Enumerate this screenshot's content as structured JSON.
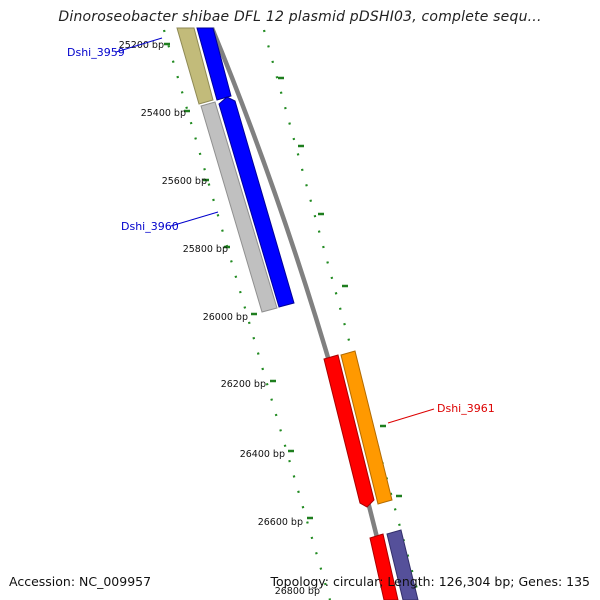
{
  "title": "Dinoroseobacter shibae DFL 12 plasmid pDSHI03, complete sequ...",
  "accession": "Accession: NC_009957",
  "summary": "Topology: circular; Length: 126,304 bp; Genes: 135",
  "ticks": [
    "25200 bp",
    "25400 bp",
    "25600 bp",
    "25800 bp",
    "26000 bp",
    "26200 bp",
    "26400 bp",
    "26600 bp",
    "26800 bp"
  ],
  "genes": [
    {
      "name": "Dshi_3959",
      "label_color": "#0000cc"
    },
    {
      "name": "Dshi_3960",
      "label_color": "#0000cc"
    },
    {
      "name": "Dshi_3961",
      "label_color": "#dd0000"
    }
  ],
  "colors": {
    "backbone": "#808080",
    "tick_marks": "#228b22",
    "gene_blue": "#0000ff",
    "gene_grey": "#c0c0c0",
    "gene_olive": "#c2bb7a",
    "gene_red": "#ff0000",
    "gene_orange": "#ff9900",
    "gene_purple": "#55509a"
  }
}
